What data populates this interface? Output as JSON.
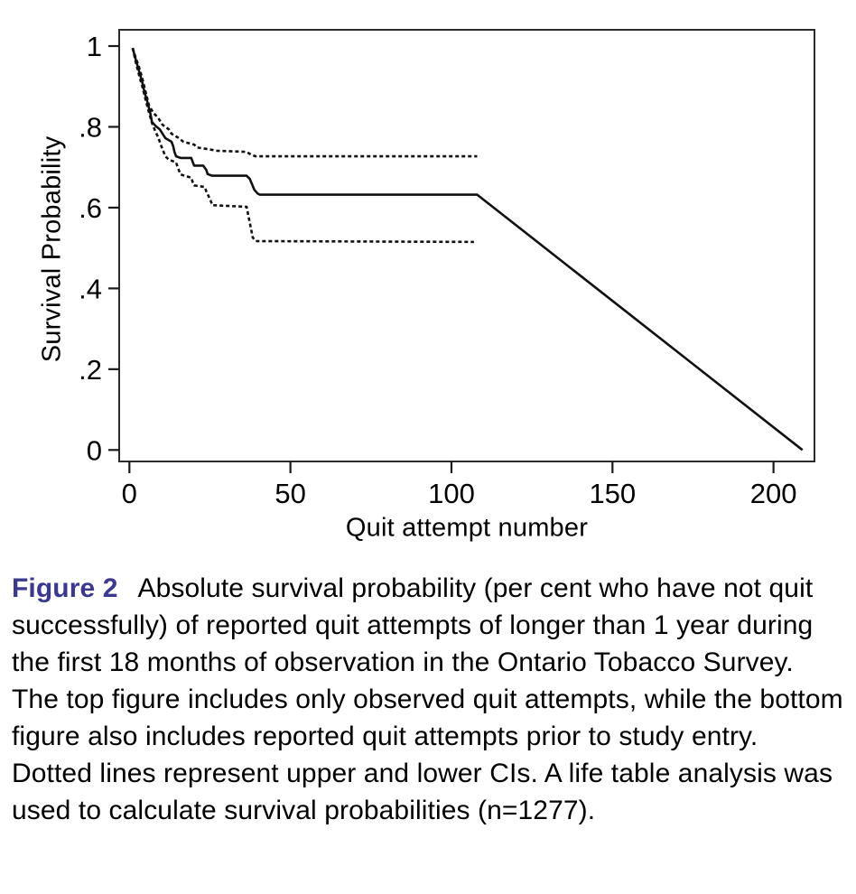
{
  "caption": {
    "label": "Figure 2",
    "text": "Absolute survival probability (per cent who have not quit successfully) of reported quit attempts of longer than 1 year during the first 18 months of observation in the Ontario Tobacco Survey. The top figure includes only observed quit attempts, while the bottom figure also includes reported quit attempts prior to study entry. Dotted lines represent upper and lower CIs. A life table analysis was used to calculate survival probabilities (n=1277)."
  },
  "colors": {
    "line": "#111111",
    "frame": "#2b2b2b",
    "tick": "#1a1a1a",
    "text": "#000000",
    "caption_label": "#3b3892"
  },
  "chart_data": {
    "type": "line",
    "title": "",
    "xlabel": "Quit attempt number",
    "ylabel": "Survival Probability",
    "xlim": [
      0,
      215
    ],
    "ylim": [
      0,
      1.04
    ],
    "grid": false,
    "legend": "none",
    "x_ticks": {
      "values": [
        0,
        50,
        100,
        150,
        200
      ],
      "labels": [
        "0",
        "50",
        "100",
        "150",
        "200"
      ]
    },
    "y_ticks": {
      "values": [
        0,
        0.2,
        0.4,
        0.6,
        0.8,
        1
      ],
      "labels": [
        "0",
        ".2",
        ".4",
        ".6",
        ".8",
        "1"
      ]
    },
    "series": [
      {
        "name": "survival-estimate",
        "style": "solid",
        "points": [
          [
            1,
            0.995
          ],
          [
            2,
            0.966
          ],
          [
            3,
            0.938
          ],
          [
            4,
            0.91
          ],
          [
            4.7,
            0.886
          ],
          [
            5.6,
            0.861
          ],
          [
            6.6,
            0.83
          ],
          [
            7,
            0.812
          ],
          [
            8.3,
            0.801
          ],
          [
            9.4,
            0.794
          ],
          [
            10.3,
            0.783
          ],
          [
            11.2,
            0.772
          ],
          [
            13.1,
            0.763
          ],
          [
            13.6,
            0.752
          ],
          [
            14,
            0.738
          ],
          [
            14.5,
            0.727
          ],
          [
            15.9,
            0.723
          ],
          [
            19.2,
            0.723
          ],
          [
            19.7,
            0.712
          ],
          [
            20.1,
            0.704
          ],
          [
            22.9,
            0.704
          ],
          [
            23.9,
            0.693
          ],
          [
            24.3,
            0.683
          ],
          [
            25.7,
            0.679
          ],
          [
            36.4,
            0.679
          ],
          [
            37.4,
            0.671
          ],
          [
            38.8,
            0.644
          ],
          [
            39.8,
            0.635
          ],
          [
            40.5,
            0.632
          ],
          [
            108,
            0.632
          ],
          [
            209,
            0
          ]
        ]
      },
      {
        "name": "upper-ci",
        "style": "dashed",
        "points": [
          [
            1,
            0.995
          ],
          [
            2,
            0.97
          ],
          [
            3,
            0.948
          ],
          [
            4,
            0.92
          ],
          [
            4.7,
            0.897
          ],
          [
            6.1,
            0.852
          ],
          [
            7.5,
            0.834
          ],
          [
            8.9,
            0.823
          ],
          [
            10.3,
            0.805
          ],
          [
            12.2,
            0.794
          ],
          [
            13.1,
            0.783
          ],
          [
            15,
            0.774
          ],
          [
            16.8,
            0.763
          ],
          [
            20.1,
            0.756
          ],
          [
            21,
            0.749
          ],
          [
            24.3,
            0.745
          ],
          [
            27.1,
            0.741
          ],
          [
            36.4,
            0.738
          ],
          [
            37.8,
            0.731
          ],
          [
            39.2,
            0.727
          ],
          [
            108,
            0.727
          ]
        ]
      },
      {
        "name": "lower-ci",
        "style": "dashed",
        "points": [
          [
            1,
            0.995
          ],
          [
            2,
            0.96
          ],
          [
            3,
            0.928
          ],
          [
            4,
            0.9
          ],
          [
            5,
            0.868
          ],
          [
            6,
            0.838
          ],
          [
            7,
            0.81
          ],
          [
            8,
            0.79
          ],
          [
            9,
            0.773
          ],
          [
            10,
            0.75
          ],
          [
            11.2,
            0.727
          ],
          [
            12.2,
            0.719
          ],
          [
            14.5,
            0.712
          ],
          [
            15,
            0.7
          ],
          [
            15.9,
            0.682
          ],
          [
            19.2,
            0.674
          ],
          [
            19.7,
            0.662
          ],
          [
            20.1,
            0.655
          ],
          [
            23.4,
            0.651
          ],
          [
            23.9,
            0.64
          ],
          [
            25.2,
            0.618
          ],
          [
            25.7,
            0.606
          ],
          [
            36.4,
            0.602
          ],
          [
            36.9,
            0.582
          ],
          [
            38.3,
            0.526
          ],
          [
            39.2,
            0.517
          ],
          [
            107,
            0.515
          ]
        ]
      }
    ]
  }
}
